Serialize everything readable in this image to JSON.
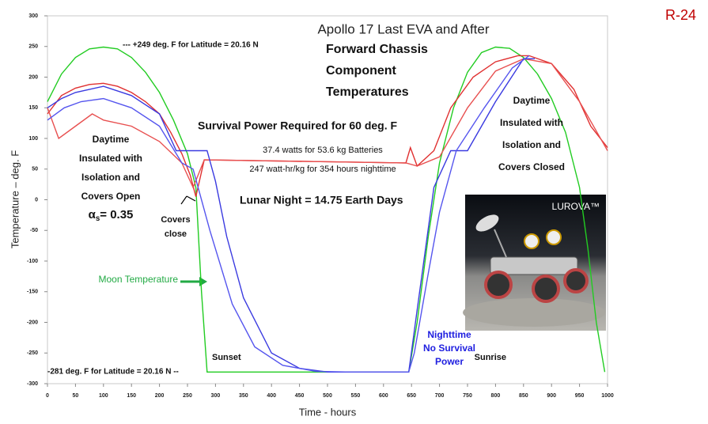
{
  "chart_data": {
    "type": "line",
    "title": "Apollo 17 Last EVA and After",
    "page_label": "R-24",
    "x_label": "Time - hours",
    "y_label": "Temperature – deg. F",
    "image_caption": "LUROVA™",
    "xlim": [
      0,
      1000
    ],
    "ylim": [
      -300,
      300
    ],
    "xticks": [
      0,
      50,
      100,
      150,
      200,
      250,
      300,
      350,
      400,
      450,
      500,
      550,
      600,
      650,
      700,
      750,
      800,
      850,
      900,
      950,
      1000
    ],
    "yticks": [
      -300,
      -250,
      -200,
      -150,
      -100,
      -50,
      0,
      50,
      100,
      150,
      200,
      250,
      300
    ],
    "grid": false,
    "series": [
      {
        "name": "Moon Temperature",
        "color": "#22cc22",
        "x": [
          0,
          25,
          50,
          75,
          100,
          125,
          150,
          175,
          200,
          225,
          250,
          265,
          275,
          285,
          645,
          660,
          680,
          700,
          725,
          750,
          775,
          800,
          825,
          850,
          875,
          900,
          925,
          950,
          965,
          980,
          995
        ],
        "values": [
          160,
          205,
          232,
          246,
          249,
          246,
          232,
          208,
          175,
          130,
          75,
          20,
          -150,
          -281,
          -281,
          -200,
          -60,
          60,
          150,
          208,
          240,
          249,
          247,
          232,
          205,
          165,
          110,
          20,
          -80,
          -200,
          -281
        ]
      },
      {
        "color": "#e03030",
        "x": [
          0,
          25,
          50,
          75,
          100,
          125,
          150,
          175,
          200,
          220,
          240,
          255,
          265,
          280,
          640,
          648,
          660,
          690,
          720,
          760,
          800,
          840,
          860,
          900,
          940,
          970,
          1000
        ],
        "values": [
          140,
          170,
          182,
          188,
          190,
          185,
          175,
          160,
          140,
          110,
          75,
          40,
          5,
          65,
          60,
          85,
          55,
          80,
          150,
          200,
          225,
          235,
          235,
          222,
          180,
          120,
          85
        ]
      },
      {
        "color": "#e85050",
        "x": [
          0,
          20,
          50,
          80,
          100,
          150,
          200,
          240,
          260,
          280,
          640,
          660,
          700,
          750,
          800,
          850,
          900,
          950,
          1000
        ],
        "values": [
          150,
          100,
          120,
          140,
          130,
          120,
          95,
          60,
          20,
          65,
          60,
          55,
          70,
          150,
          210,
          230,
          222,
          160,
          80
        ]
      },
      {
        "color": "#3a3ae0",
        "x": [
          0,
          25,
          50,
          100,
          150,
          200,
          230,
          285,
          300,
          320,
          350,
          400,
          450,
          500,
          645,
          660,
          690,
          720,
          750,
          800,
          850,
          870
        ],
        "values": [
          150,
          165,
          175,
          185,
          170,
          140,
          80,
          80,
          30,
          -60,
          -160,
          -250,
          -275,
          -281,
          -281,
          -180,
          20,
          80,
          80,
          160,
          230,
          230
        ]
      },
      {
        "color": "#5555ee",
        "x": [
          0,
          30,
          60,
          100,
          150,
          200,
          240,
          260,
          290,
          330,
          370,
          420,
          480,
          540,
          645,
          655,
          680,
          700,
          730,
          780,
          830,
          860
        ],
        "values": [
          130,
          150,
          160,
          165,
          150,
          120,
          60,
          50,
          -50,
          -170,
          -240,
          -270,
          -280,
          -281,
          -281,
          -250,
          -120,
          -20,
          80,
          150,
          215,
          235
        ]
      }
    ],
    "annotations": [
      {
        "lines": [
          "--- +249 deg. F for Latitude = 20.16 N"
        ]
      },
      {
        "lines": [
          "Forward Chassis",
          "Component",
          "Temperatures"
        ]
      },
      {
        "lines": [
          "Survival Power Required for 60 deg. F"
        ]
      },
      {
        "lines": [
          "37.4 watts for 53.6 kg Batteries"
        ]
      },
      {
        "lines": [
          "247 watt-hr/kg for 354 hours nighttime"
        ]
      },
      {
        "lines": [
          "Lunar Night = 14.75 Earth Days"
        ]
      },
      {
        "lines": [
          "Daytime",
          "Insulated with",
          "Isolation and",
          "Covers Open"
        ]
      },
      {
        "lines": [
          "α"
        ],
        "sub": "s",
        "tail": "= 0.35"
      },
      {
        "lines": [
          "Covers",
          "close"
        ]
      },
      {
        "lines": [
          "Daytime",
          "Insulated with",
          "Isolation and",
          "Covers Closed"
        ]
      },
      {
        "lines": [
          "Sunset"
        ]
      },
      {
        "lines": [
          "Sunrise"
        ]
      },
      {
        "lines": [
          "Nighttime",
          "No Survival",
          "Power"
        ],
        "color": "#2020e0"
      },
      {
        "lines": [
          "-281 deg. F for Latitude = 20.16 N --"
        ]
      }
    ]
  }
}
